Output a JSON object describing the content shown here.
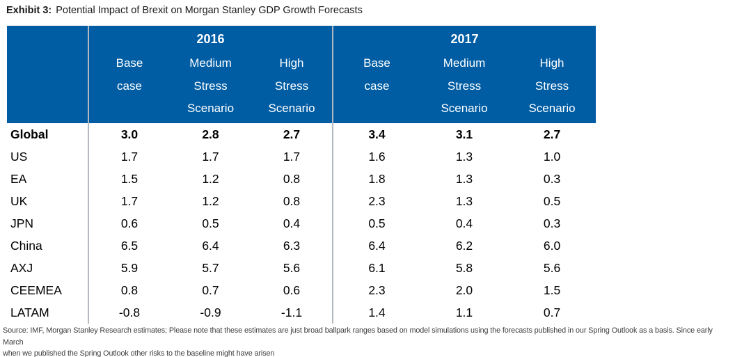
{
  "title": {
    "exhibit_label": "Exhibit 3:",
    "text": "Potential Impact of Brexit on Morgan Stanley GDP Growth Forecasts"
  },
  "colors": {
    "header_blue": "#005DA4",
    "divider_gray": "#B3B9BF"
  },
  "chart_data": {
    "type": "table",
    "title": "Potential Impact of Brexit on Morgan Stanley GDP Growth Forecasts",
    "year_groups": [
      "2016",
      "2017"
    ],
    "column_headers": [
      "Base\ncase",
      "Medium\nStress\nScenario",
      "High\nStress\nScenario",
      "Base\ncase",
      "Medium\nStress\nScenario",
      "High\nStress\nScenario"
    ],
    "rows": [
      {
        "label": "Global",
        "bold": true,
        "values": [
          "3.0",
          "2.8",
          "2.7",
          "3.4",
          "3.1",
          "2.7"
        ]
      },
      {
        "label": "US",
        "bold": false,
        "values": [
          "1.7",
          "1.7",
          "1.7",
          "1.6",
          "1.3",
          "1.0"
        ]
      },
      {
        "label": "EA",
        "bold": false,
        "values": [
          "1.5",
          "1.2",
          "0.8",
          "1.8",
          "1.3",
          "0.3"
        ]
      },
      {
        "label": "UK",
        "bold": false,
        "values": [
          "1.7",
          "1.2",
          "0.8",
          "2.3",
          "1.3",
          "0.5"
        ]
      },
      {
        "label": "JPN",
        "bold": false,
        "values": [
          "0.6",
          "0.5",
          "0.4",
          "0.5",
          "0.4",
          "0.3"
        ]
      },
      {
        "label": "China",
        "bold": false,
        "values": [
          "6.5",
          "6.4",
          "6.3",
          "6.4",
          "6.2",
          "6.0"
        ]
      },
      {
        "label": "AXJ",
        "bold": false,
        "values": [
          "5.9",
          "5.7",
          "5.6",
          "6.1",
          "5.8",
          "5.6"
        ]
      },
      {
        "label": "CEEMEA",
        "bold": false,
        "values": [
          "0.8",
          "0.7",
          "0.6",
          "2.3",
          "2.0",
          "1.5"
        ]
      },
      {
        "label": "LATAM",
        "bold": false,
        "values": [
          "-0.8",
          "-0.9",
          "-1.1",
          "1.4",
          "1.1",
          "0.7"
        ]
      }
    ]
  },
  "footer": {
    "line1": "Source: IMF, Morgan Stanley Research estimates; Please note that these estimates are just broad ballpark ranges based on model simulations using the forecasts published in our Spring Outlook as a basis. Since early March",
    "line2": "when we published the Spring Outlook other risks to the baseline might have arisen"
  }
}
